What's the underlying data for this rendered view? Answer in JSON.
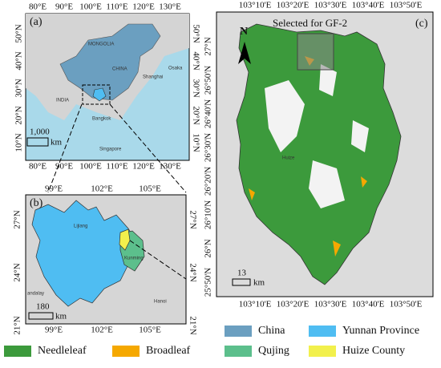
{
  "panels": {
    "a": {
      "label": "(a)",
      "top_ticks": [
        "80°E",
        "90°E",
        "100°E",
        "110°E",
        "120°E",
        "130°E"
      ],
      "bottom_ticks": [
        "80°E",
        "90°E",
        "100°E",
        "110°E",
        "120°E",
        "130°E"
      ],
      "left_ticks": [
        "50°N",
        "40°N",
        "30°N",
        "20°N",
        "10°N"
      ],
      "right_ticks": [
        "50°N",
        "40°N",
        "30°N",
        "20°N",
        "10°N"
      ],
      "scale_bar": "1,000",
      "scale_unit": "km",
      "places": [
        "MONGOLIA",
        "CHINA",
        "INDIA",
        "Bangkok",
        "Singapore",
        "Shanghai",
        "Osaka"
      ]
    },
    "b": {
      "label": "(b)",
      "top_ticks": [
        "99°E",
        "102°E",
        "105°E"
      ],
      "bottom_ticks": [
        "99°E",
        "102°E",
        "105°E"
      ],
      "left_ticks": [
        "27°N",
        "24°N",
        "21°N"
      ],
      "right_ticks": [
        "27°N",
        "24°N",
        "21°N"
      ],
      "scale_bar": "180",
      "scale_unit": "km",
      "places": [
        "Lijiang",
        "Kunming",
        "Hanoi",
        "andalay"
      ]
    },
    "c": {
      "label": "(c)",
      "north": "N",
      "selection": "Selected for GF-2",
      "town": "Huize",
      "top_ticks": [
        "103°10'E",
        "103°20'E",
        "103°30'E",
        "103°40'E",
        "103°50'E"
      ],
      "bottom_ticks": [
        "103°10'E",
        "103°20'E",
        "103°30'E",
        "103°40'E",
        "103°50'E"
      ],
      "left_ticks": [
        "27°N",
        "26°50'N",
        "26°40'N",
        "26°30'N",
        "26°20'N",
        "26°10'N",
        "26°N",
        "25°50'N"
      ],
      "scale_bar": "13",
      "scale_unit": "km"
    }
  },
  "legend": [
    {
      "name": "China",
      "color": "#6b9fc0"
    },
    {
      "name": "Yunnan Province",
      "color": "#4fbdf2"
    },
    {
      "name": "Needleleaf",
      "color": "#3c9a3c"
    },
    {
      "name": "Broadleaf",
      "color": "#f5a800"
    },
    {
      "name": "Qujing",
      "color": "#5cbf8c"
    },
    {
      "name": "Huize County",
      "color": "#f2f04c"
    }
  ]
}
